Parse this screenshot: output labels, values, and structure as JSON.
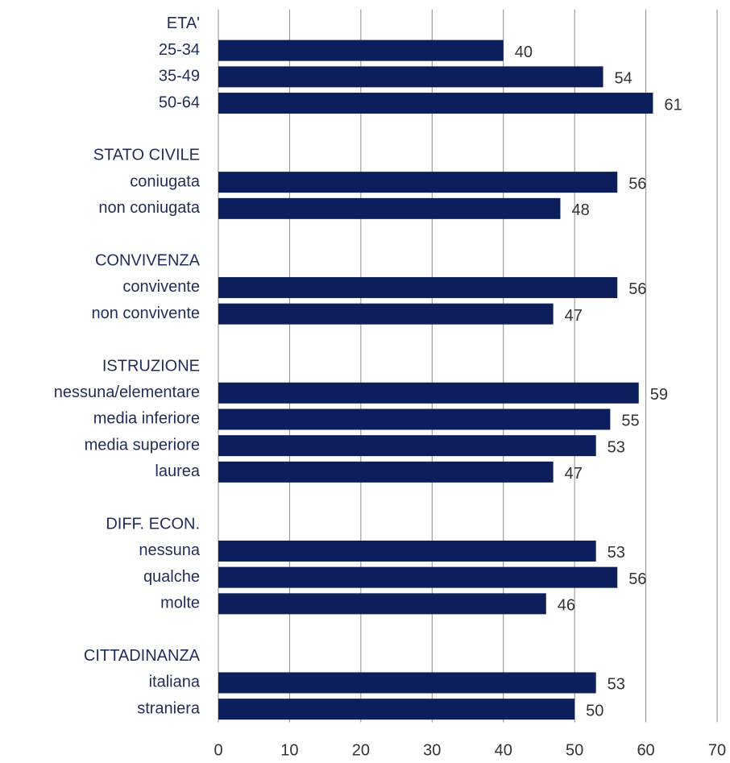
{
  "chart_data": {
    "type": "barh",
    "categories": [
      "ETA'",
      "25-34",
      "35-49",
      "50-64",
      null,
      "STATO CIVILE",
      "coniugata",
      "non coniugata",
      null,
      "CONVIVENZA",
      "convivente",
      "non convivente",
      null,
      "ISTRUZIONE",
      "nessuna/elementare",
      "media inferiore",
      "media superiore",
      "laurea",
      null,
      "DIFF. ECON.",
      "nessuna",
      "qualche",
      "molte",
      null,
      "CITTADINANZA",
      "italiana",
      "straniera"
    ],
    "values": [
      null,
      40,
      54,
      61,
      null,
      null,
      56,
      48,
      null,
      null,
      56,
      47,
      null,
      null,
      59,
      55,
      53,
      47,
      null,
      null,
      53,
      56,
      46,
      null,
      null,
      53,
      50
    ],
    "color": "#0c1f5c",
    "xlim": [
      0,
      70
    ],
    "xticks": [
      0,
      10,
      20,
      30,
      40,
      50,
      60,
      70
    ],
    "grid": true
  }
}
